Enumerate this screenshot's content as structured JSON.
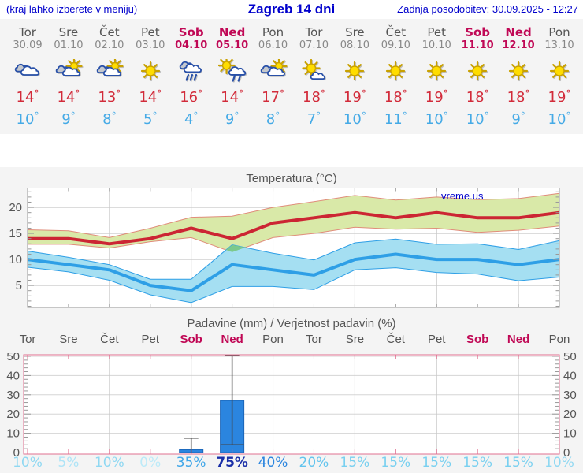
{
  "header": {
    "left": "(kraj lahko izberete v meniju)",
    "title": "Zagreb 14 dni",
    "right": "Zadnja posodobitev: 30.09.2025 - 12:27"
  },
  "colors": {
    "header_blue": "#0000CC",
    "weekday_text": "#555555",
    "date_text": "#888888",
    "weekend_text": "#C00855",
    "tmax_text": "#D22B3A",
    "tmin_text": "#45AAE6",
    "grid": "#C8C8C8",
    "axis_frame": "#999999",
    "precip_frame": "#E07090",
    "watermark": "#0000CC"
  },
  "days": [
    {
      "name": "Tor",
      "date": "30.09",
      "weekend": false,
      "icon": "cloudy",
      "tmax": 14,
      "tmin": 10
    },
    {
      "name": "Sre",
      "date": "01.10",
      "weekend": false,
      "icon": "partly-cloudy",
      "tmax": 14,
      "tmin": 9
    },
    {
      "name": "Čet",
      "date": "02.10",
      "weekend": false,
      "icon": "partly-cloudy",
      "tmax": 13,
      "tmin": 8
    },
    {
      "name": "Pet",
      "date": "03.10",
      "weekend": false,
      "icon": "sunny",
      "tmax": 14,
      "tmin": 5
    },
    {
      "name": "Sob",
      "date": "04.10",
      "weekend": true,
      "icon": "rain",
      "tmax": 16,
      "tmin": 4
    },
    {
      "name": "Ned",
      "date": "05.10",
      "weekend": true,
      "icon": "sun-rain",
      "tmax": 14,
      "tmin": 9
    },
    {
      "name": "Pon",
      "date": "06.10",
      "weekend": false,
      "icon": "partly-cloudy",
      "tmax": 17,
      "tmin": 8
    },
    {
      "name": "Tor",
      "date": "07.10",
      "weekend": false,
      "icon": "mostly-sunny",
      "tmax": 18,
      "tmin": 7
    },
    {
      "name": "Sre",
      "date": "08.10",
      "weekend": false,
      "icon": "sunny",
      "tmax": 19,
      "tmin": 10
    },
    {
      "name": "Čet",
      "date": "09.10",
      "weekend": false,
      "icon": "sunny",
      "tmax": 18,
      "tmin": 11
    },
    {
      "name": "Pet",
      "date": "10.10",
      "weekend": false,
      "icon": "sunny",
      "tmax": 19,
      "tmin": 10
    },
    {
      "name": "Sob",
      "date": "11.10",
      "weekend": true,
      "icon": "sunny",
      "tmax": 18,
      "tmin": 10
    },
    {
      "name": "Ned",
      "date": "12.10",
      "weekend": true,
      "icon": "sunny",
      "tmax": 18,
      "tmin": 9
    },
    {
      "name": "Pon",
      "date": "13.10",
      "weekend": false,
      "icon": "sunny",
      "tmax": 19,
      "tmin": 10
    }
  ],
  "chart_data": [
    {
      "type": "line",
      "title": "Temperatura (°C)",
      "watermark": "vreme.us",
      "ylim": [
        0.8,
        23.8
      ],
      "yticks": [
        5,
        10,
        15,
        20
      ],
      "x_gridline_day_indices": [
        2,
        4,
        6,
        8,
        10,
        12
      ],
      "series": [
        {
          "name": "max temperature",
          "color": "#CC2533",
          "values": [
            14,
            14,
            13,
            14,
            16,
            14,
            17,
            18,
            19,
            18,
            19,
            18,
            18,
            19
          ]
        },
        {
          "name": "min temperature",
          "color": "#2E9FE6",
          "values": [
            10,
            9,
            8,
            5,
            4,
            9,
            8,
            7,
            10,
            11,
            10,
            10,
            9,
            10
          ]
        }
      ],
      "bands": [
        {
          "name": "max temperature range",
          "fill": "#D9E9A8",
          "edge": "#E08C7A",
          "upper": [
            15.7,
            15.5,
            14.2,
            16.0,
            18.1,
            18.3,
            20.0,
            21.1,
            22.3,
            21.4,
            22.0,
            21.5,
            21.7,
            22.7
          ],
          "lower": [
            12.9,
            12.9,
            12.2,
            13.4,
            14.2,
            11.4,
            14.2,
            15.0,
            16.2,
            15.8,
            16.0,
            15.2,
            15.6,
            16.4
          ]
        },
        {
          "name": "min temperature range",
          "fill": "#A5DFF2",
          "edge": "#2E9FE6",
          "upper": [
            11.6,
            10.4,
            9.0,
            6.2,
            6.2,
            12.8,
            11.2,
            9.9,
            13.2,
            13.9,
            12.9,
            13.0,
            11.9,
            13.6
          ],
          "lower": [
            8.5,
            7.6,
            6.0,
            3.2,
            1.7,
            4.8,
            4.8,
            4.2,
            8.0,
            8.4,
            7.5,
            7.2,
            5.9,
            6.6
          ]
        }
      ],
      "overlap_fill": "#7CC98C"
    },
    {
      "type": "bar",
      "title": "Padavine (mm) / Verjetnost padavin (%)",
      "ylim": [
        0,
        51
      ],
      "yticks": [
        0,
        10,
        20,
        30,
        40,
        50
      ],
      "x_gridline_day_indices": [
        2,
        4,
        6,
        8,
        10,
        12
      ],
      "day_labels": [
        "Tor",
        "Sre",
        "Čet",
        "Pet",
        "Sob",
        "Ned",
        "Pon",
        "Tor",
        "Sre",
        "Čet",
        "Pet",
        "Sob",
        "Ned",
        "Pon"
      ],
      "weekend_indices": [
        4,
        5,
        11,
        12
      ],
      "bar_color": "#2B85DF",
      "bar_edge": "#1B65B8",
      "whisker_color": "#444444",
      "bars": [
        {
          "day_index": 4,
          "value": 1.5,
          "whisker_min": 0,
          "whisker_max": 7.5
        },
        {
          "day_index": 5,
          "value": 27,
          "whisker_min": 4,
          "whisker_max": 51
        }
      ],
      "probabilities": [
        {
          "label": "10%",
          "color": "#8FD8F2",
          "bold": false
        },
        {
          "label": "5%",
          "color": "#AEE4F7",
          "bold": false
        },
        {
          "label": "10%",
          "color": "#8FD8F2",
          "bold": false
        },
        {
          "label": "0%",
          "color": "#BCEAF8",
          "bold": false
        },
        {
          "label": "35%",
          "color": "#3FA6E8",
          "bold": false
        },
        {
          "label": "75%",
          "color": "#1A2FA8",
          "bold": true
        },
        {
          "label": "40%",
          "color": "#2B85DF",
          "bold": false
        },
        {
          "label": "20%",
          "color": "#62C4EE",
          "bold": false
        },
        {
          "label": "15%",
          "color": "#79D0F0",
          "bold": false
        },
        {
          "label": "15%",
          "color": "#79D0F0",
          "bold": false
        },
        {
          "label": "15%",
          "color": "#79D0F0",
          "bold": false
        },
        {
          "label": "15%",
          "color": "#79D0F0",
          "bold": false
        },
        {
          "label": "15%",
          "color": "#79D0F0",
          "bold": false
        },
        {
          "label": "10%",
          "color": "#8FD8F2",
          "bold": false
        }
      ]
    }
  ]
}
